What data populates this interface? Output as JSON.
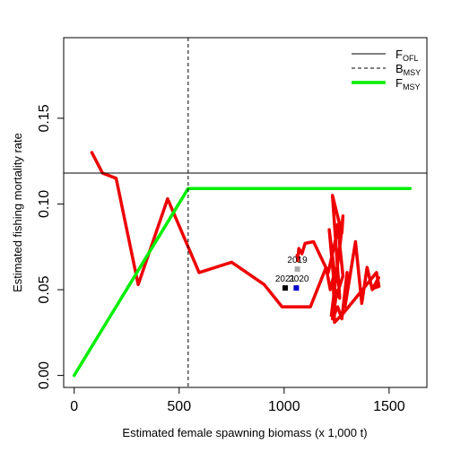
{
  "chart_data": {
    "type": "line",
    "xlabel": "Estimated female spawning biomass (x 1,000 t)",
    "ylabel": "Estimated fishing mortality rate",
    "xlim": [
      -50,
      1680
    ],
    "ylim": [
      -0.007,
      0.197
    ],
    "x_ticks": [
      0,
      500,
      1000,
      1500
    ],
    "y_ticks": [
      0.0,
      0.05,
      0.1,
      0.15
    ],
    "x_tick_labels": [
      "0",
      "500",
      "1000",
      "1500"
    ],
    "y_tick_labels": [
      "0.00",
      "0.05",
      "0.10",
      "0.15"
    ],
    "grid": false,
    "legend_position": "top-right",
    "legend": [
      {
        "main": "F",
        "sub": "OFL",
        "style": "solid-thin",
        "color": "#000000"
      },
      {
        "main": "B",
        "sub": "MSY",
        "style": "dashed",
        "color": "#000000"
      },
      {
        "main": "F",
        "sub": "MSY",
        "style": "solid-thick",
        "color": "#00ee00"
      }
    ],
    "reference_lines": {
      "F_OFL": 0.118,
      "B_MSY": 543
    },
    "series": [
      {
        "color": "#ee0000",
        "points": [
          [
            84,
            0.13
          ],
          [
            135,
            0.118
          ],
          [
            200,
            0.115
          ],
          [
            305,
            0.053
          ],
          [
            445,
            0.103
          ],
          [
            595,
            0.06
          ],
          [
            750,
            0.066
          ],
          [
            905,
            0.053
          ],
          [
            990,
            0.04
          ],
          [
            1125,
            0.04
          ],
          [
            1200,
            0.063
          ],
          [
            1220,
            0.05
          ],
          [
            1240,
            0.06
          ],
          [
            1215,
            0.085
          ],
          [
            1245,
            0.044
          ],
          [
            1230,
            0.033
          ],
          [
            1255,
            0.04
          ],
          [
            1275,
            0.033
          ],
          [
            1300,
            0.06
          ],
          [
            1290,
            0.04
          ],
          [
            1340,
            0.078
          ],
          [
            1370,
            0.042
          ],
          [
            1395,
            0.063
          ],
          [
            1420,
            0.05
          ],
          [
            1450,
            0.057
          ],
          [
            1430,
            0.051
          ],
          [
            1452,
            0.052
          ],
          [
            1440,
            0.06
          ],
          [
            1280,
            0.036
          ],
          [
            1240,
            0.031
          ],
          [
            1235,
            0.052
          ],
          [
            1265,
            0.045
          ],
          [
            1230,
            0.105
          ],
          [
            1275,
            0.083
          ],
          [
            1280,
            0.093
          ],
          [
            1270,
            0.08
          ],
          [
            1225,
            0.035
          ],
          [
            1230,
            0.039
          ],
          [
            1280,
            0.058
          ],
          [
            1255,
            0.088
          ],
          [
            1250,
            0.082
          ],
          [
            1210,
            0.06
          ],
          [
            1140,
            0.078
          ],
          [
            1100,
            0.077
          ],
          [
            1085,
            0.071
          ],
          [
            1070,
            0.074
          ],
          [
            1065,
            0.067
          ],
          [
            1062,
            0.07
          ]
        ]
      },
      {
        "color": "#00ee00",
        "points": [
          [
            0,
            0.0
          ],
          [
            543,
            0.109
          ],
          [
            1600,
            0.109
          ]
        ]
      }
    ],
    "highlight_points": [
      {
        "label": "2019",
        "x": 1063,
        "y": 0.062,
        "color": "#aaaaaa",
        "label_dx": 0,
        "label_dy": -7
      },
      {
        "label": "2021",
        "x": 1005,
        "y": 0.051,
        "color": "#000000",
        "label_dx": 0,
        "label_dy": -7
      },
      {
        "label": "2020",
        "x": 1058,
        "y": 0.051,
        "color": "#0000cc",
        "label_dx": 3,
        "label_dy": -7
      }
    ]
  }
}
